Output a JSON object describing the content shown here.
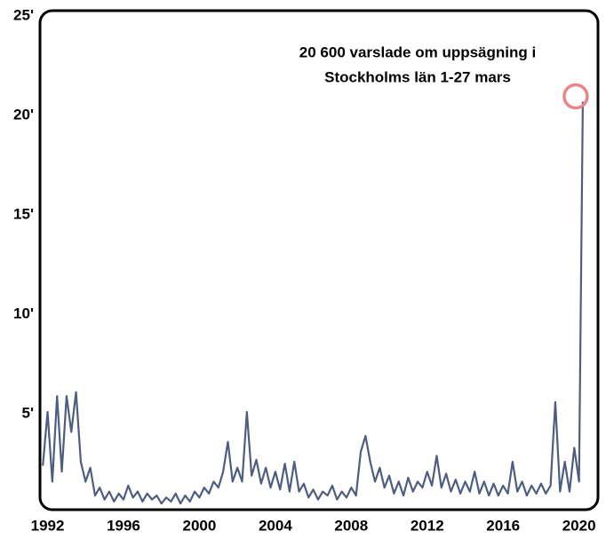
{
  "chart_data": {
    "type": "line",
    "annotations": [
      "20 600 varslade om uppsägning i",
      "Stockholms län 1-27 mars"
    ],
    "x": [
      1991.75,
      1992.0,
      1992.25,
      1992.5,
      1992.75,
      1993.0,
      1993.25,
      1993.5,
      1993.75,
      1994.0,
      1994.25,
      1994.5,
      1994.75,
      1995.0,
      1995.25,
      1995.5,
      1995.75,
      1996.0,
      1996.25,
      1996.5,
      1996.75,
      1997.0,
      1997.25,
      1997.5,
      1997.75,
      1998.0,
      1998.25,
      1998.5,
      1998.75,
      1999.0,
      1999.25,
      1999.5,
      1999.75,
      2000.0,
      2000.25,
      2000.5,
      2000.75,
      2001.0,
      2001.25,
      2001.5,
      2001.75,
      2002.0,
      2002.25,
      2002.5,
      2002.75,
      2003.0,
      2003.25,
      2003.5,
      2003.75,
      2004.0,
      2004.25,
      2004.5,
      2004.75,
      2005.0,
      2005.25,
      2005.5,
      2005.75,
      2006.0,
      2006.25,
      2006.5,
      2006.75,
      2007.0,
      2007.25,
      2007.5,
      2007.75,
      2008.0,
      2008.25,
      2008.5,
      2008.75,
      2009.0,
      2009.25,
      2009.5,
      2009.75,
      2010.0,
      2010.25,
      2010.5,
      2010.75,
      2011.0,
      2011.25,
      2011.5,
      2011.75,
      2012.0,
      2012.25,
      2012.5,
      2012.75,
      2013.0,
      2013.25,
      2013.5,
      2013.75,
      2014.0,
      2014.25,
      2014.5,
      2014.75,
      2015.0,
      2015.25,
      2015.5,
      2015.75,
      2016.0,
      2016.25,
      2016.5,
      2016.75,
      2017.0,
      2017.25,
      2017.5,
      2017.75,
      2018.0,
      2018.25,
      2018.5,
      2018.75,
      2019.0,
      2019.25,
      2019.5,
      2019.75,
      2020.0,
      2020.2
    ],
    "series": [
      {
        "color": "#4e5d80",
        "values": [
          2.3,
          5.0,
          1.5,
          5.8,
          2.0,
          5.8,
          4.0,
          6.0,
          2.5,
          1.5,
          2.2,
          0.8,
          1.2,
          0.6,
          1.0,
          0.5,
          0.9,
          0.6,
          1.3,
          0.7,
          1.0,
          0.5,
          0.9,
          0.6,
          0.8,
          0.4,
          0.7,
          0.5,
          0.9,
          0.4,
          0.8,
          0.5,
          1.0,
          0.7,
          1.2,
          0.9,
          1.5,
          1.2,
          2.0,
          3.5,
          1.5,
          2.2,
          1.5,
          5.0,
          1.8,
          2.6,
          1.4,
          2.2,
          1.2,
          2.0,
          1.1,
          2.4,
          1.0,
          2.5,
          1.0,
          1.4,
          0.7,
          1.1,
          0.6,
          1.0,
          0.8,
          1.3,
          0.6,
          1.0,
          0.7,
          1.2,
          0.8,
          3.0,
          3.8,
          2.5,
          1.5,
          2.2,
          1.2,
          1.8,
          0.9,
          1.5,
          0.8,
          1.7,
          1.0,
          1.5,
          1.2,
          2.0,
          1.3,
          2.8,
          1.2,
          1.9,
          1.0,
          1.6,
          0.9,
          1.5,
          1.0,
          2.0,
          0.9,
          1.5,
          0.8,
          1.4,
          0.8,
          1.3,
          0.9,
          2.5,
          1.0,
          1.5,
          0.8,
          1.3,
          0.9,
          1.4,
          0.9,
          1.3,
          5.5,
          1.0,
          2.5,
          1.0,
          3.2,
          1.5,
          20.6
        ]
      }
    ],
    "highlight_color": "#e8868a",
    "xlim": [
      1991.6,
      2021.0
    ],
    "xticks": [
      1992,
      1996,
      2000,
      2004,
      2008,
      2012,
      2016,
      2020
    ],
    "ylim": [
      0,
      25
    ],
    "yticks": [
      {
        "value": 5,
        "label": "5'"
      },
      {
        "value": 10,
        "label": "10'"
      },
      {
        "value": 15,
        "label": "15'"
      },
      {
        "value": 20,
        "label": "20'"
      },
      {
        "value": 25,
        "label": "25'"
      }
    ]
  }
}
